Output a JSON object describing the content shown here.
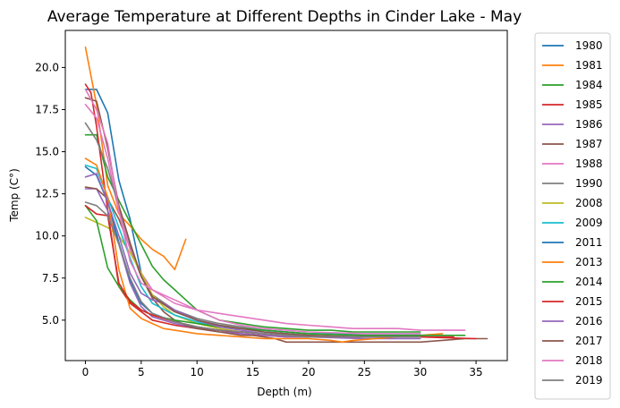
{
  "chart_data": {
    "type": "line",
    "title": "Average Temperature at Different Depths in Cinder Lake - May",
    "xlabel": "Depth (m)",
    "ylabel": "Temp (C°)",
    "xlim": [
      -1.8,
      37.8
    ],
    "ylim": [
      2.6,
      22.2
    ],
    "xticks": [
      0,
      5,
      10,
      15,
      20,
      25,
      30,
      35
    ],
    "yticks": [
      5.0,
      7.5,
      10.0,
      12.5,
      15.0,
      17.5,
      20.0
    ],
    "grid": false,
    "legend_position": "outside-right",
    "series": [
      {
        "name": "1980",
        "color": "#1f77b4",
        "x": [
          0,
          1,
          2,
          3,
          4,
          5,
          6,
          8,
          10,
          12,
          14,
          16,
          18,
          20,
          25,
          30
        ],
        "y": [
          18.7,
          18.7,
          17.3,
          13.3,
          11.0,
          7.8,
          6.4,
          5.5,
          5.0,
          4.7,
          4.5,
          4.3,
          4.2,
          4.1,
          4.0,
          4.0
        ]
      },
      {
        "name": "1981",
        "color": "#ff7f0e",
        "x": [
          0,
          1,
          2,
          3,
          4,
          5,
          6,
          7,
          8,
          9
        ],
        "y": [
          21.2,
          17.8,
          13.0,
          11.3,
          10.6,
          9.8,
          9.2,
          8.8,
          8.0,
          9.8
        ]
      },
      {
        "name": "1984",
        "color": "#2ca02c",
        "x": [
          0,
          1,
          2,
          3,
          4,
          5,
          6,
          7,
          8,
          9,
          10,
          11,
          12,
          13,
          14,
          15,
          16,
          18,
          20,
          22,
          24,
          26,
          28,
          30
        ],
        "y": [
          16.0,
          16.0,
          13.5,
          12.1,
          10.8,
          9.5,
          8.2,
          7.4,
          6.8,
          6.2,
          5.6,
          5.3,
          5.0,
          4.9,
          4.8,
          4.7,
          4.6,
          4.5,
          4.4,
          4.4,
          4.3,
          4.3,
          4.3,
          4.3
        ]
      },
      {
        "name": "1985",
        "color": "#d62728",
        "x": [
          0,
          0.5,
          1,
          2,
          3,
          4,
          5,
          6,
          8,
          10,
          12,
          14,
          16,
          18,
          20,
          25,
          30,
          33
        ],
        "y": [
          19.0,
          18.5,
          16.5,
          11.5,
          7.0,
          6.0,
          5.5,
          5.0,
          4.7,
          4.5,
          4.4,
          4.2,
          4.1,
          4.0,
          4.0,
          4.0,
          4.0,
          4.0
        ]
      },
      {
        "name": "1986",
        "color": "#9467bd",
        "x": [
          0,
          1,
          2,
          3,
          4,
          5,
          6,
          8,
          10,
          12,
          14,
          16,
          18,
          20,
          25,
          30
        ],
        "y": [
          12.8,
          12.8,
          11.5,
          9.5,
          7.2,
          5.8,
          5.2,
          4.8,
          4.5,
          4.3,
          4.2,
          4.1,
          4.0,
          4.0,
          3.9,
          3.9
        ]
      },
      {
        "name": "1987",
        "color": "#8c564b",
        "x": [
          0,
          1,
          2,
          3,
          4,
          5,
          6,
          7,
          8,
          9,
          10,
          11,
          12,
          13,
          14,
          15,
          16,
          17,
          18,
          20,
          22,
          24,
          26,
          28,
          30,
          32,
          34,
          36
        ],
        "y": [
          12.9,
          12.8,
          12.2,
          11.0,
          9.3,
          7.6,
          6.3,
          5.5,
          5.0,
          4.7,
          4.5,
          4.4,
          4.3,
          4.2,
          4.1,
          4.1,
          4.0,
          3.9,
          3.7,
          3.7,
          3.7,
          3.7,
          3.7,
          3.7,
          3.7,
          3.8,
          3.9,
          3.9
        ]
      },
      {
        "name": "1988",
        "color": "#e377c2",
        "x": [
          0,
          1,
          2,
          3,
          4,
          5,
          6,
          7,
          8,
          9,
          10,
          12,
          14,
          16,
          18,
          20,
          22,
          24,
          26,
          28,
          30,
          32,
          34
        ],
        "y": [
          17.8,
          17.0,
          14.6,
          11.4,
          9.2,
          7.8,
          6.8,
          6.4,
          6.0,
          5.8,
          5.6,
          5.4,
          5.2,
          5.0,
          4.8,
          4.7,
          4.6,
          4.5,
          4.5,
          4.5,
          4.4,
          4.4,
          4.4
        ]
      },
      {
        "name": "1990",
        "color": "#7f7f7f",
        "x": [
          0,
          1,
          2,
          3,
          4,
          5,
          6,
          8,
          10,
          12,
          14,
          16,
          18,
          20,
          25,
          30
        ],
        "y": [
          16.7,
          15.7,
          14.0,
          11.7,
          9.5,
          7.6,
          6.5,
          5.6,
          5.1,
          4.8,
          4.6,
          4.4,
          4.3,
          4.2,
          4.1,
          4.1
        ]
      },
      {
        "name": "2008",
        "color": "#bcbd22",
        "x": [
          0,
          1,
          2,
          3,
          4,
          5,
          6,
          7,
          8,
          10,
          12,
          14,
          16,
          18,
          20,
          25,
          30
        ],
        "y": [
          11.1,
          10.8,
          10.5,
          10.0,
          9.0,
          7.8,
          6.5,
          5.8,
          5.3,
          4.8,
          4.5,
          4.3,
          4.2,
          4.1,
          4.0,
          4.0,
          4.0
        ]
      },
      {
        "name": "2009",
        "color": "#17becf",
        "x": [
          0,
          1,
          2,
          3,
          4,
          5,
          6,
          8,
          10,
          12,
          14,
          16,
          18,
          20,
          25,
          30
        ],
        "y": [
          14.2,
          14.0,
          12.3,
          10.5,
          8.7,
          7.0,
          6.0,
          5.3,
          4.9,
          4.6,
          4.5,
          4.4,
          4.3,
          4.2,
          4.2,
          4.2
        ]
      },
      {
        "name": "2011",
        "color": "#1f77b4",
        "x": [
          0,
          1,
          2,
          3,
          4,
          5,
          6,
          8,
          10,
          12,
          14,
          16,
          18,
          20,
          25,
          30
        ],
        "y": [
          14.1,
          13.6,
          12.0,
          9.6,
          7.4,
          6.0,
          5.4,
          4.9,
          4.6,
          4.4,
          4.3,
          4.2,
          4.1,
          4.0,
          4.0,
          4.0
        ]
      },
      {
        "name": "2013",
        "color": "#ff7f0e",
        "x": [
          0,
          1,
          2,
          3,
          4,
          5,
          6,
          7,
          8,
          10,
          12,
          14,
          16,
          18,
          20,
          22,
          23,
          24,
          26,
          28,
          30,
          32
        ],
        "y": [
          14.6,
          14.2,
          12.3,
          8.0,
          5.7,
          5.1,
          4.8,
          4.5,
          4.4,
          4.2,
          4.1,
          4.0,
          3.9,
          3.9,
          3.9,
          3.8,
          3.7,
          3.8,
          3.9,
          4.0,
          4.1,
          4.2
        ]
      },
      {
        "name": "2014",
        "color": "#2ca02c",
        "x": [
          0,
          1,
          2,
          3,
          4,
          5,
          6,
          8,
          10,
          12,
          14,
          16,
          18,
          20,
          25,
          30,
          34
        ],
        "y": [
          11.8,
          10.9,
          8.1,
          7.0,
          6.2,
          5.6,
          5.3,
          5.0,
          4.8,
          4.6,
          4.5,
          4.4,
          4.3,
          4.2,
          4.1,
          4.1,
          4.1
        ]
      },
      {
        "name": "2015",
        "color": "#d62728",
        "x": [
          0,
          1,
          2,
          3,
          4,
          5,
          6,
          8,
          10,
          12,
          14,
          16,
          18,
          20,
          25,
          30,
          35
        ],
        "y": [
          11.8,
          11.3,
          11.2,
          7.2,
          6.1,
          5.6,
          5.3,
          4.9,
          4.6,
          4.4,
          4.3,
          4.2,
          4.1,
          4.0,
          4.0,
          4.0,
          3.9
        ]
      },
      {
        "name": "2016",
        "color": "#9467bd",
        "x": [
          0,
          1,
          2,
          3,
          4,
          5,
          6,
          7,
          8,
          10,
          12,
          14,
          16,
          18,
          20,
          25,
          30
        ],
        "y": [
          13.5,
          13.7,
          12.0,
          10.0,
          7.8,
          6.6,
          6.2,
          6.0,
          5.6,
          5.0,
          4.6,
          4.4,
          4.2,
          4.1,
          4.0,
          4.0,
          4.0
        ]
      },
      {
        "name": "2017",
        "color": "#8c564b",
        "x": [
          0,
          1,
          2,
          3,
          4,
          5,
          6,
          8,
          10,
          12,
          14,
          16,
          18,
          20,
          25,
          30
        ],
        "y": [
          18.2,
          18.0,
          15.2,
          11.8,
          9.6,
          7.6,
          6.4,
          5.5,
          5.0,
          4.7,
          4.5,
          4.3,
          4.2,
          4.1,
          4.0,
          4.0
        ]
      },
      {
        "name": "2018",
        "color": "#e377c2",
        "x": [
          0,
          1,
          2,
          3,
          4,
          5,
          6,
          7,
          8,
          10,
          12,
          14,
          16,
          18,
          20,
          25,
          30
        ],
        "y": [
          18.7,
          17.5,
          15.5,
          11.5,
          8.5,
          7.2,
          6.8,
          6.5,
          6.2,
          5.6,
          5.0,
          4.7,
          4.5,
          4.4,
          4.3,
          4.2,
          4.2
        ]
      },
      {
        "name": "2019",
        "color": "#7f7f7f",
        "x": [
          0,
          1,
          2,
          3,
          4,
          5,
          6,
          8,
          10,
          12,
          14,
          16,
          18,
          20,
          25,
          30
        ],
        "y": [
          12.0,
          11.8,
          11.2,
          9.5,
          7.5,
          6.1,
          5.4,
          4.9,
          4.6,
          4.4,
          4.3,
          4.2,
          4.1,
          4.0,
          4.0,
          4.0
        ]
      }
    ]
  }
}
